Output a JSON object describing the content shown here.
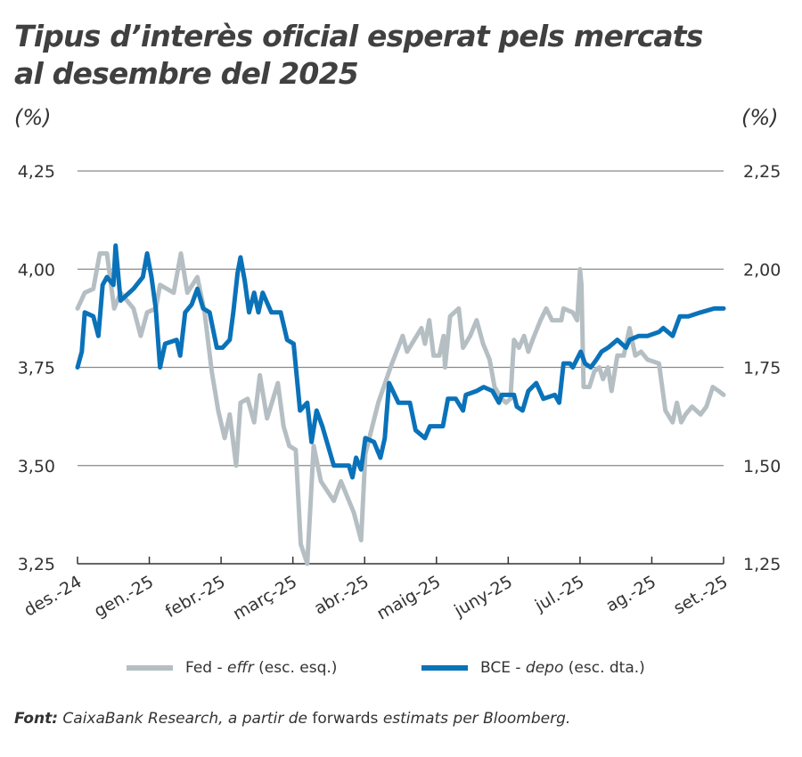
{
  "chart_data": {
    "type": "line",
    "title": "Tipus d’interès oficial esperat pels mercats al desembre del 2025",
    "y_left_label": "(%)",
    "y_right_label": "(%)",
    "y_left_lim": [
      3.25,
      4.25
    ],
    "y_right_lim": [
      1.25,
      2.25
    ],
    "y_left_ticks": [
      "4,25",
      "4,00",
      "3,75",
      "3,50",
      "3,25"
    ],
    "y_right_ticks": [
      "2,25",
      "2,00",
      "1,75",
      "1,50",
      "1,25"
    ],
    "y_left_tick_values": [
      4.25,
      4.0,
      3.75,
      3.5,
      3.25
    ],
    "x_tick_labels": [
      "des.-24",
      "gen.-25",
      "febr.-25",
      "març-25",
      "abr.-25",
      "maig-25",
      "juny-25",
      "jul.-25",
      "ag.-25",
      "set.-25"
    ],
    "x_unit": "months since des.-24",
    "xlim": [
      0,
      9
    ],
    "grid": true,
    "legend_position": "bottom",
    "series": [
      {
        "name": "Fed",
        "name_italic": "effr",
        "name_suffix": "(esc. esq.)",
        "axis": "left",
        "color": "#b5bfc3",
        "x": [
          0,
          0.1,
          0.22,
          0.31,
          0.41,
          0.51,
          0.6,
          0.78,
          0.88,
          0.97,
          1.09,
          1.15,
          1.34,
          1.44,
          1.53,
          1.67,
          1.77,
          1.87,
          1.96,
          2.05,
          2.12,
          2.21,
          2.27,
          2.37,
          2.46,
          2.54,
          2.64,
          2.79,
          2.87,
          2.95,
          3.04,
          3.11,
          3.2,
          3.29,
          3.39,
          3.57,
          3.67,
          3.85,
          3.95,
          4.01,
          4.19,
          4.38,
          4.53,
          4.59,
          4.79,
          4.84,
          4.9,
          4.96,
          5.04,
          5.1,
          5.12,
          5.19,
          5.31,
          5.37,
          5.47,
          5.56,
          5.65,
          5.74,
          5.81,
          5.91,
          5.97,
          6.03,
          6.08,
          6.15,
          6.22,
          6.28,
          6.34,
          6.45,
          6.53,
          6.61,
          6.74,
          6.77,
          6.9,
          6.96,
          7.0,
          7.02,
          7.05,
          7.13,
          7.2,
          7.27,
          7.32,
          7.39,
          7.44,
          7.52,
          7.61,
          7.69,
          7.77,
          7.85,
          7.94,
          8.1,
          8.19,
          8.29,
          8.35,
          8.41,
          8.47,
          8.56,
          8.68,
          8.76,
          8.85,
          8.93,
          9.0
        ],
        "values": [
          3.9,
          3.94,
          3.95,
          4.04,
          4.04,
          3.9,
          3.94,
          3.9,
          3.83,
          3.89,
          3.9,
          3.96,
          3.94,
          4.04,
          3.94,
          3.98,
          3.89,
          3.74,
          3.64,
          3.57,
          3.63,
          3.5,
          3.66,
          3.67,
          3.61,
          3.73,
          3.62,
          3.71,
          3.6,
          3.55,
          3.54,
          3.3,
          3.25,
          3.55,
          3.46,
          3.41,
          3.46,
          3.38,
          3.31,
          3.53,
          3.66,
          3.76,
          3.83,
          3.79,
          3.85,
          3.81,
          3.87,
          3.78,
          3.78,
          3.83,
          3.75,
          3.88,
          3.9,
          3.8,
          3.83,
          3.87,
          3.81,
          3.77,
          3.7,
          3.67,
          3.66,
          3.67,
          3.82,
          3.8,
          3.83,
          3.79,
          3.82,
          3.87,
          3.9,
          3.87,
          3.87,
          3.9,
          3.89,
          3.87,
          4.0,
          3.96,
          3.7,
          3.7,
          3.74,
          3.75,
          3.72,
          3.75,
          3.69,
          3.78,
          3.78,
          3.85,
          3.78,
          3.79,
          3.77,
          3.76,
          3.64,
          3.61,
          3.66,
          3.61,
          3.63,
          3.65,
          3.63,
          3.65,
          3.7,
          3.69,
          3.68
        ]
      },
      {
        "name": "BCE",
        "name_italic": "depo",
        "name_suffix": "(esc. dta.)",
        "axis": "right",
        "color": "#0a72b9",
        "x": [
          0,
          0.06,
          0.1,
          0.22,
          0.29,
          0.35,
          0.41,
          0.5,
          0.53,
          0.6,
          0.78,
          0.91,
          0.97,
          1.03,
          1.09,
          1.15,
          1.22,
          1.38,
          1.43,
          1.5,
          1.59,
          1.67,
          1.75,
          1.84,
          1.94,
          2.02,
          2.12,
          2.17,
          2.23,
          2.27,
          2.33,
          2.39,
          2.46,
          2.52,
          2.58,
          2.7,
          2.83,
          2.92,
          3.01,
          3.1,
          3.2,
          3.26,
          3.33,
          3.41,
          3.57,
          3.78,
          3.83,
          3.88,
          3.95,
          4.01,
          4.13,
          4.22,
          4.28,
          4.34,
          4.47,
          4.63,
          4.71,
          4.84,
          4.91,
          5.09,
          5.16,
          5.27,
          5.37,
          5.41,
          5.56,
          5.66,
          5.78,
          5.87,
          5.91,
          6.08,
          6.12,
          6.2,
          6.28,
          6.39,
          6.49,
          6.65,
          6.71,
          6.77,
          6.86,
          6.9,
          7.01,
          7.07,
          7.15,
          7.23,
          7.3,
          7.39,
          7.52,
          7.64,
          7.69,
          7.82,
          7.94,
          8.1,
          8.16,
          8.29,
          8.39,
          8.51,
          8.68,
          8.87,
          9.0
        ],
        "values": [
          1.75,
          1.79,
          1.89,
          1.88,
          1.83,
          1.96,
          1.98,
          1.96,
          2.06,
          1.92,
          1.95,
          1.98,
          2.04,
          1.98,
          1.9,
          1.75,
          1.81,
          1.82,
          1.78,
          1.89,
          1.91,
          1.95,
          1.9,
          1.89,
          1.8,
          1.8,
          1.82,
          1.89,
          1.99,
          2.03,
          1.97,
          1.89,
          1.94,
          1.89,
          1.94,
          1.89,
          1.89,
          1.82,
          1.81,
          1.64,
          1.66,
          1.56,
          1.64,
          1.6,
          1.5,
          1.5,
          1.47,
          1.52,
          1.49,
          1.57,
          1.56,
          1.52,
          1.57,
          1.71,
          1.66,
          1.66,
          1.59,
          1.57,
          1.6,
          1.6,
          1.67,
          1.67,
          1.64,
          1.68,
          1.69,
          1.7,
          1.69,
          1.66,
          1.68,
          1.68,
          1.65,
          1.64,
          1.69,
          1.71,
          1.67,
          1.68,
          1.66,
          1.76,
          1.76,
          1.75,
          1.79,
          1.76,
          1.75,
          1.77,
          1.79,
          1.8,
          1.82,
          1.8,
          1.82,
          1.83,
          1.83,
          1.84,
          1.85,
          1.83,
          1.88,
          1.88,
          1.89,
          1.9,
          1.9
        ]
      }
    ]
  },
  "title_line1": "Tipus d’interès oficial esperat pels mercats",
  "title_line2": "al desembre del 2025",
  "legend": {
    "fed_name": "Fed - ",
    "fed_italic": "effr",
    "fed_suffix": " (esc. esq.)",
    "bce_name": "BCE - ",
    "bce_italic": "depo",
    "bce_suffix": " (esc. dta.)"
  },
  "source": {
    "label": "Font:",
    "text1": " CaixaBank Research, a partir de ",
    "text2": "forwards",
    "text3": " estimats per Bloomberg."
  }
}
